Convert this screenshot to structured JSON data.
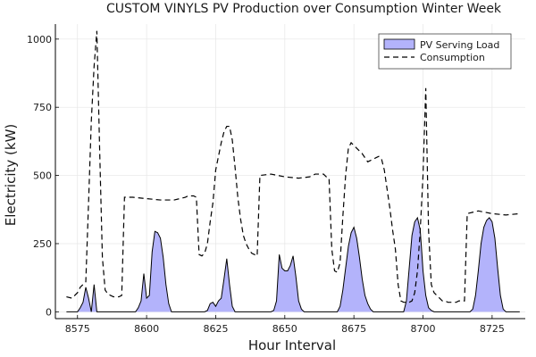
{
  "chart_data": {
    "type": "area",
    "title": "CUSTOM VINYLS PV Production over Consumption Winter Week",
    "xlabel": "Hour Interval",
    "ylabel": "Electricity (kW)",
    "xlim": [
      8567,
      8737
    ],
    "ylim": [
      -25,
      1055
    ],
    "xticks": [
      8575,
      8600,
      8625,
      8650,
      8675,
      8700,
      8725
    ],
    "yticks": [
      0,
      250,
      500,
      750,
      1000
    ],
    "grid": true,
    "legend_position": "top-right",
    "colors": {
      "pv_fill": "#b3b3fb",
      "pv_line": "#000000",
      "consumption_line": "#000000"
    },
    "series": [
      {
        "name": "PV Serving Load",
        "style": "filled-area",
        "x": [
          8571,
          8575,
          8576,
          8577,
          8578,
          8579,
          8580,
          8581,
          8582,
          8583,
          8595,
          8596,
          8597,
          8598,
          8599,
          8600,
          8601,
          8602,
          8603,
          8604,
          8605,
          8606,
          8607,
          8608,
          8609,
          8620,
          8621,
          8622,
          8623,
          8624,
          8625,
          8626,
          8627,
          8628,
          8629,
          8630,
          8631,
          8632,
          8633,
          8634,
          8644,
          8645,
          8646,
          8647,
          8648,
          8649,
          8650,
          8651,
          8652,
          8653,
          8654,
          8655,
          8656,
          8657,
          8658,
          8668,
          8669,
          8670,
          8671,
          8672,
          8673,
          8674,
          8675,
          8676,
          8677,
          8678,
          8679,
          8680,
          8681,
          8682,
          8692,
          8693,
          8694,
          8695,
          8696,
          8697,
          8698,
          8699,
          8700,
          8701,
          8702,
          8703,
          8704,
          8705,
          8716,
          8717,
          8718,
          8719,
          8720,
          8721,
          8722,
          8723,
          8724,
          8725,
          8726,
          8727,
          8728,
          8729,
          8730,
          8735
        ],
        "values": [
          0,
          0,
          15,
          35,
          90,
          50,
          0,
          100,
          0,
          0,
          0,
          0,
          15,
          40,
          140,
          50,
          60,
          220,
          295,
          290,
          270,
          200,
          100,
          30,
          0,
          0,
          0,
          5,
          30,
          35,
          20,
          40,
          50,
          120,
          195,
          100,
          20,
          0,
          0,
          0,
          0,
          0,
          5,
          40,
          210,
          160,
          150,
          150,
          170,
          205,
          130,
          40,
          10,
          0,
          0,
          0,
          0,
          20,
          80,
          160,
          240,
          290,
          310,
          270,
          200,
          120,
          60,
          30,
          10,
          0,
          0,
          0,
          40,
          160,
          280,
          330,
          345,
          300,
          150,
          60,
          15,
          5,
          0,
          0,
          0,
          0,
          10,
          60,
          150,
          250,
          310,
          335,
          345,
          330,
          270,
          160,
          60,
          10,
          0,
          0
        ]
      },
      {
        "name": "Consumption",
        "style": "dashed-line",
        "x": [
          8571,
          8573,
          8575,
          8576,
          8577,
          8578,
          8579,
          8580,
          8581,
          8582,
          8583,
          8584,
          8585,
          8586,
          8587,
          8588,
          8589,
          8590,
          8591,
          8592,
          8595,
          8600,
          8605,
          8610,
          8614,
          8615,
          8617,
          8618,
          8619,
          8620,
          8621,
          8622,
          8623,
          8624,
          8625,
          8626,
          8627,
          8628,
          8629,
          8630,
          8631,
          8632,
          8633,
          8634,
          8635,
          8636,
          8637,
          8638,
          8639,
          8640,
          8641,
          8645,
          8650,
          8655,
          8659,
          8660,
          8661,
          8664,
          8665,
          8666,
          8667,
          8668,
          8669,
          8670,
          8671,
          8672,
          8673,
          8674,
          8675,
          8676,
          8677,
          8678,
          8679,
          8680,
          8681,
          8682,
          8683,
          8684,
          8685,
          8686,
          8687,
          8688,
          8689,
          8690,
          8691,
          8692,
          8693,
          8694,
          8695,
          8696,
          8697,
          8698,
          8699,
          8700,
          8701,
          8702,
          8703,
          8704,
          8705,
          8706,
          8707,
          8708,
          8709,
          8710,
          8711,
          8712,
          8713,
          8714,
          8715,
          8716,
          8720,
          8725,
          8730,
          8735
        ],
        "values": [
          55,
          50,
          70,
          90,
          100,
          110,
          400,
          700,
          900,
          1030,
          600,
          200,
          80,
          65,
          60,
          55,
          55,
          55,
          60,
          420,
          420,
          415,
          410,
          410,
          420,
          425,
          425,
          420,
          210,
          205,
          215,
          250,
          330,
          400,
          520,
          570,
          620,
          660,
          680,
          680,
          630,
          530,
          420,
          340,
          280,
          250,
          230,
          215,
          210,
          205,
          500,
          505,
          495,
          490,
          495,
          500,
          505,
          505,
          495,
          490,
          230,
          150,
          145,
          180,
          350,
          500,
          600,
          620,
          610,
          600,
          590,
          580,
          565,
          550,
          555,
          560,
          565,
          570,
          560,
          520,
          450,
          380,
          300,
          230,
          100,
          40,
          35,
          35,
          35,
          40,
          70,
          150,
          300,
          500,
          820,
          300,
          100,
          70,
          60,
          50,
          40,
          40,
          35,
          35,
          35,
          35,
          40,
          40,
          40,
          360,
          370,
          360,
          355,
          360
        ]
      }
    ]
  }
}
